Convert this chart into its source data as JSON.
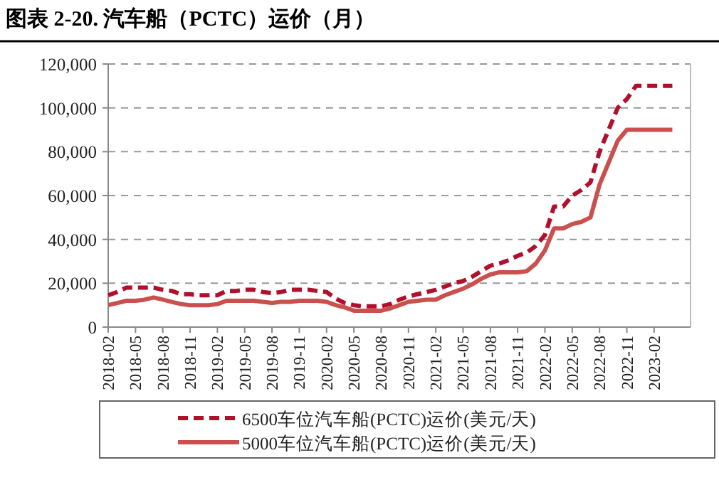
{
  "chart_data": {
    "type": "line",
    "title": "图表 2-20. 汽车船（PCTC）运价（月）",
    "categories": [
      "2018-02",
      null,
      null,
      "2018-05",
      null,
      null,
      "2018-08",
      null,
      null,
      "2018-11",
      null,
      null,
      "2019-02",
      null,
      null,
      "2019-05",
      null,
      null,
      "2019-08",
      null,
      null,
      "2019-11",
      null,
      null,
      "2020-02",
      null,
      null,
      "2020-05",
      null,
      null,
      "2020-08",
      null,
      null,
      "2020-11",
      null,
      null,
      "2021-02",
      null,
      null,
      "2021-05",
      null,
      null,
      "2021-08",
      null,
      null,
      "2021-11",
      null,
      null,
      "2022-02",
      null,
      null,
      "2022-05",
      null,
      null,
      "2022-08",
      null,
      null,
      "2022-11",
      null,
      null,
      "2023-02",
      null,
      null
    ],
    "series": [
      {
        "name": "6500车位汽车船(PCTC)运价(美元/天)",
        "color": "#b0102c",
        "line_style": "dashed",
        "values": [
          14500,
          16000,
          18000,
          18000,
          18000,
          18000,
          17000,
          16500,
          15000,
          15000,
          14500,
          14500,
          14500,
          16500,
          16500,
          17000,
          17000,
          16000,
          15500,
          16000,
          17000,
          17000,
          17000,
          16500,
          16000,
          13000,
          11000,
          10000,
          9500,
          9500,
          9500,
          10500,
          12500,
          14000,
          15000,
          16000,
          17000,
          18500,
          20000,
          21000,
          23000,
          25500,
          28000,
          29000,
          30500,
          32500,
          34000,
          37000,
          42000,
          55000,
          55000,
          60000,
          62500,
          66000,
          80000,
          90000,
          100000,
          104000,
          110000,
          110000,
          110000,
          110000,
          110000
        ]
      },
      {
        "name": "5000车位汽车船(PCTC)运价(美元/天)",
        "color": "#c9504d",
        "line_style": "solid",
        "values": [
          10000,
          11000,
          12000,
          12000,
          12500,
          13500,
          12500,
          11500,
          10500,
          10000,
          10000,
          10000,
          10500,
          12000,
          12000,
          12000,
          12000,
          11500,
          11000,
          11500,
          11500,
          12000,
          12000,
          12000,
          11500,
          10000,
          9000,
          7500,
          7500,
          7500,
          7500,
          8500,
          10000,
          11500,
          12000,
          12500,
          12500,
          14500,
          16000,
          17500,
          19500,
          22000,
          24000,
          25000,
          25000,
          25000,
          25500,
          29000,
          35000,
          45000,
          45000,
          47000,
          48000,
          50000,
          65000,
          75000,
          85000,
          90000,
          90000,
          90000,
          90000,
          90000,
          90000
        ]
      }
    ],
    "ylim": [
      0,
      120000
    ],
    "yticks": [
      0,
      {
        "value": 20000,
        "label": "20,000"
      },
      {
        "value": 40000,
        "label": "40,000"
      },
      {
        "value": 60000,
        "label": "60,000"
      },
      {
        "value": 80000,
        "label": "80,000"
      },
      {
        "value": 100000,
        "label": "100,000"
      },
      {
        "value": 120000,
        "label": "120,000"
      }
    ],
    "grid": "y",
    "legend": "bottom"
  }
}
